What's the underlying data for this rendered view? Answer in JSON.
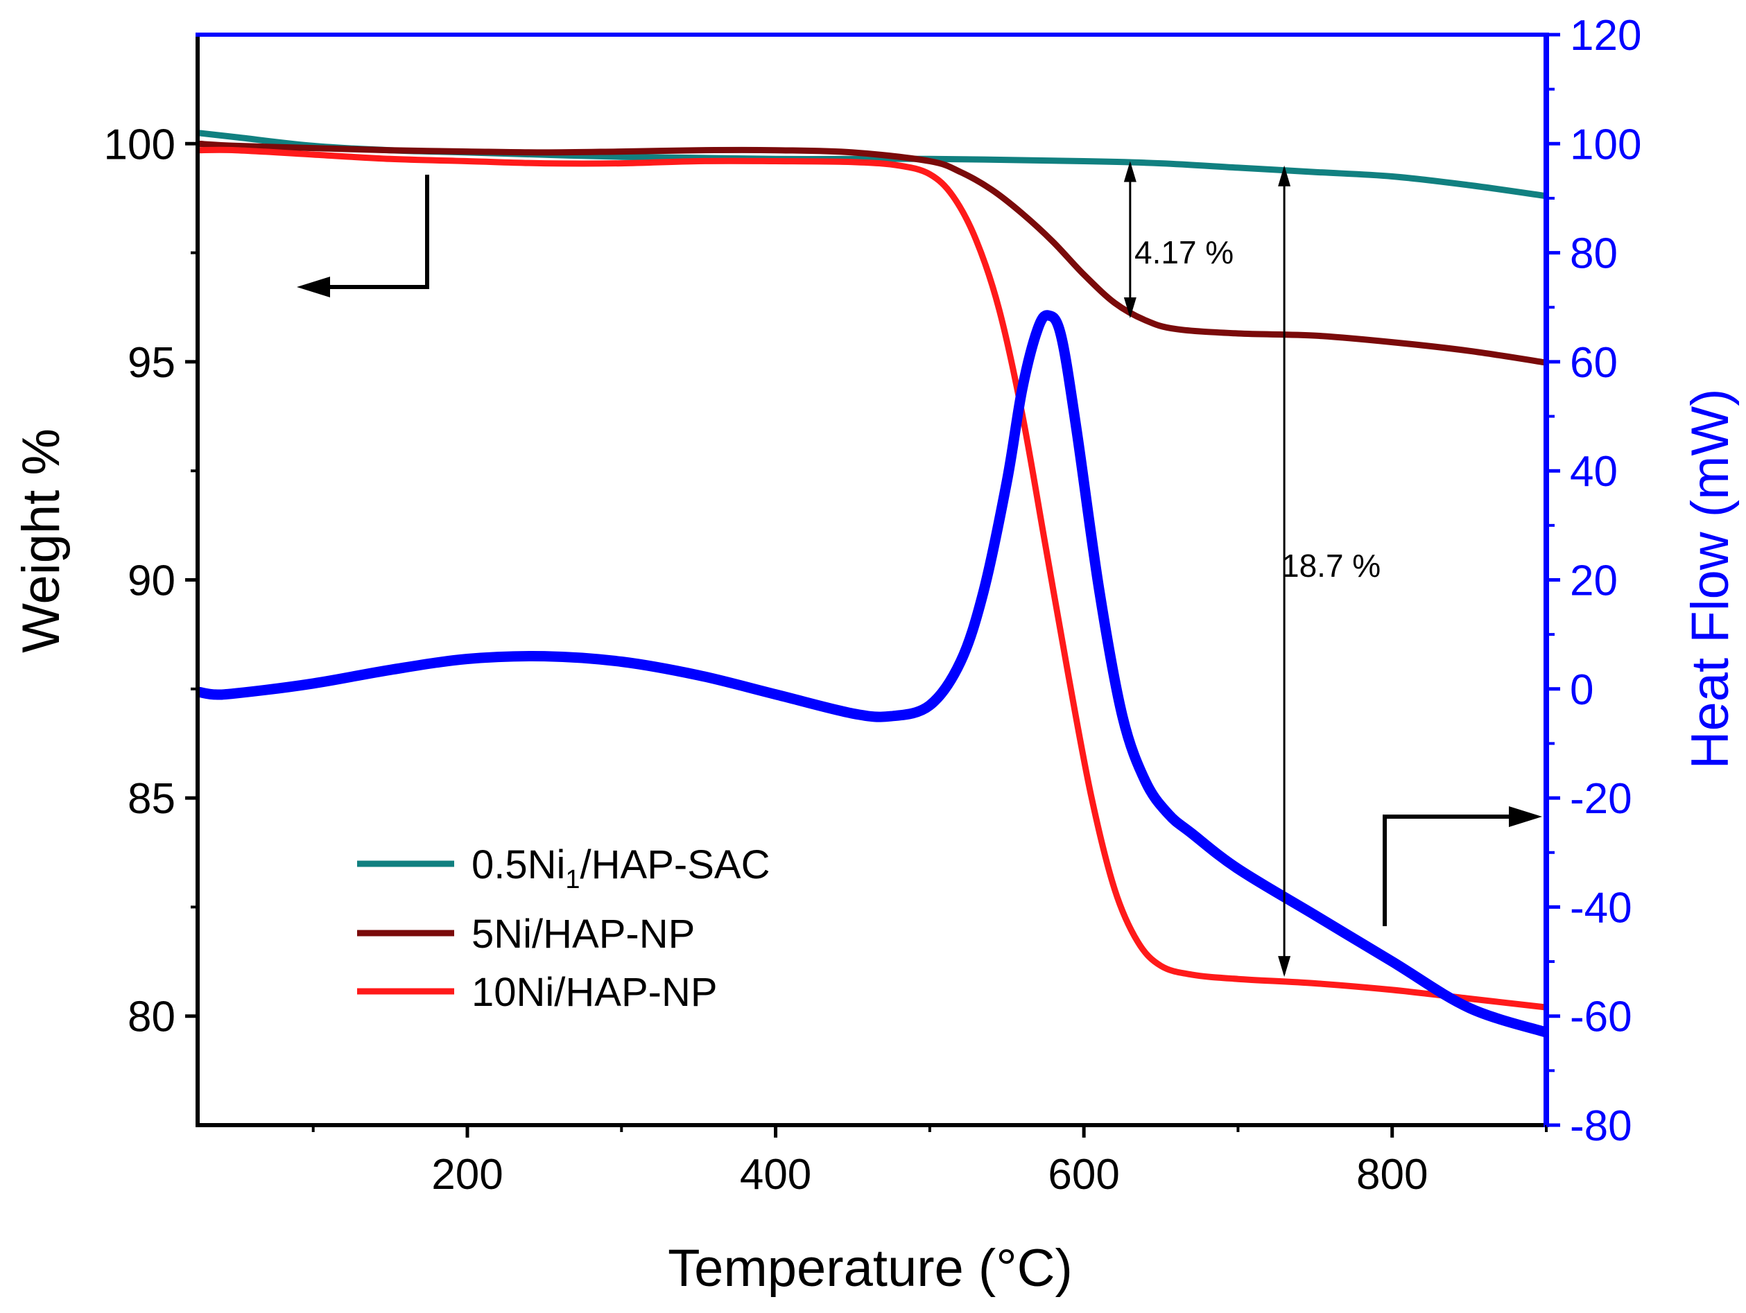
{
  "chart_data": {
    "type": "line",
    "xlabel": "Temperature (°C)",
    "ylabel_left": "Weight %",
    "ylabel_right": "Heat Flow (mW)",
    "xlim": [
      25,
      900
    ],
    "ylim_left": [
      77.5,
      102.5
    ],
    "ylim_right": [
      -80,
      120
    ],
    "x_ticks": [
      200,
      400,
      600,
      800
    ],
    "x_ticks_minor": [
      100,
      300,
      500,
      700,
      900
    ],
    "y_left_ticks": [
      80,
      85,
      90,
      95,
      100
    ],
    "y_right_ticks": [
      -80,
      -60,
      -40,
      -20,
      0,
      20,
      40,
      60,
      80,
      100,
      120
    ],
    "grid": false,
    "legend_position": "bottom-left",
    "series": [
      {
        "name": "0.5Ni1/HAP-SAC",
        "legend_main": "0.5Ni",
        "legend_sub": "1",
        "legend_tail": "/HAP-SAC",
        "color": "#118080",
        "axis": "left",
        "x": [
          25,
          50,
          100,
          150,
          200,
          300,
          400,
          500,
          600,
          650,
          700,
          750,
          800,
          850,
          900
        ],
        "y": [
          100.25,
          100.15,
          99.95,
          99.85,
          99.8,
          99.7,
          99.65,
          99.65,
          99.6,
          99.55,
          99.45,
          99.35,
          99.25,
          99.05,
          98.8
        ]
      },
      {
        "name": "5Ni/HAP-NP",
        "color": "#7a0a0a",
        "axis": "left",
        "x": [
          25,
          50,
          100,
          150,
          200,
          250,
          300,
          350,
          400,
          450,
          500,
          520,
          540,
          560,
          580,
          600,
          620,
          640,
          660,
          700,
          750,
          800,
          850,
          900
        ],
        "y": [
          100.0,
          99.95,
          99.9,
          99.85,
          99.82,
          99.8,
          99.82,
          99.85,
          99.85,
          99.8,
          99.6,
          99.35,
          98.95,
          98.4,
          97.75,
          97.0,
          96.35,
          95.95,
          95.75,
          95.65,
          95.6,
          95.45,
          95.25,
          94.98
        ]
      },
      {
        "name": "10Ni/HAP-NP",
        "color": "#ff1a1a",
        "axis": "left",
        "x": [
          25,
          50,
          100,
          150,
          200,
          250,
          300,
          350,
          400,
          450,
          480,
          500,
          515,
          530,
          545,
          560,
          575,
          590,
          605,
          620,
          635,
          650,
          670,
          700,
          750,
          800,
          850,
          900
        ],
        "y": [
          99.85,
          99.85,
          99.75,
          99.65,
          99.6,
          99.55,
          99.55,
          99.6,
          99.6,
          99.58,
          99.5,
          99.3,
          98.8,
          97.8,
          96.2,
          93.8,
          90.8,
          87.8,
          85.0,
          82.9,
          81.7,
          81.15,
          80.95,
          80.85,
          80.75,
          80.6,
          80.4,
          80.2
        ]
      },
      {
        "name": "Heat Flow",
        "color": "#0000ff",
        "axis": "right",
        "x": [
          25,
          35,
          50,
          100,
          150,
          200,
          250,
          300,
          350,
          400,
          450,
          475,
          500,
          520,
          535,
          550,
          560,
          570,
          577,
          585,
          595,
          610,
          625,
          640,
          655,
          670,
          700,
          750,
          800,
          850,
          900
        ],
        "y": [
          -0.5,
          -1.0,
          -0.8,
          1.0,
          3.5,
          5.5,
          6.0,
          5.0,
          2.5,
          -1.0,
          -4.5,
          -5.0,
          -3.0,
          5.0,
          18.0,
          38.0,
          55.0,
          66.0,
          68.5,
          65.0,
          48.0,
          18.0,
          -5.0,
          -17.0,
          -23.0,
          -26.5,
          -33.0,
          -41.5,
          -50.0,
          -58.5,
          -63.0
        ]
      }
    ],
    "annotations": [
      {
        "text": "4.17 %",
        "x_data": 630,
        "from_y": 99.6,
        "to_y": 96.0
      },
      {
        "text": "18.7 %",
        "x_data": 730,
        "from_y": 99.5,
        "to_y": 80.9
      }
    ]
  }
}
